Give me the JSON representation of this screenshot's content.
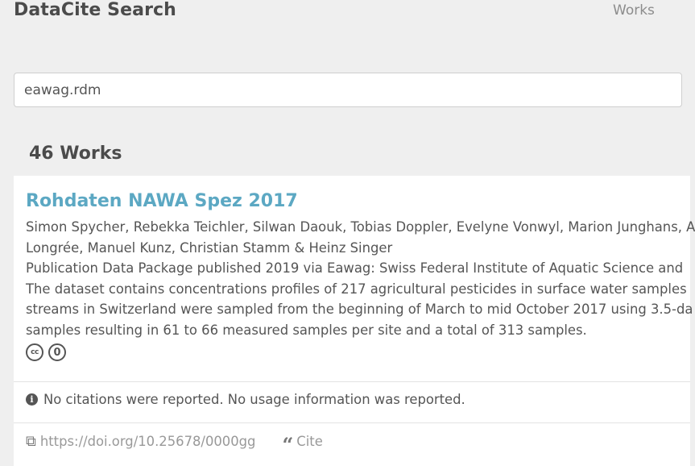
{
  "header": {
    "brand": "DataCite Search",
    "nav_works": "Works"
  },
  "search": {
    "value": "eawag.rdm"
  },
  "results": {
    "count_label": "46 Works"
  },
  "work": {
    "title": "Rohdaten NAWA Spez 2017",
    "authors_line1": "Simon Spycher, Rebekka Teichler, Silwan Daouk, Tobias Doppler, Evelyne Vonwyl, Marion Junghans, A",
    "authors_line2": "Longrée, Manuel Kunz, Christian Stamm & Heinz Singer",
    "publication": "Publication Data Package published 2019 via Eawag: Swiss Federal Institute of Aquatic Science and",
    "description_line1": "The dataset contains concentrations profiles of 217 agricultural pesticides in surface water samples",
    "description_line2": "streams in Switzerland were sampled from the beginning of March to mid October 2017 using 3.5-da",
    "description_line3": "samples resulting in 61 to 66 measured samples per site and a total of 313 samples.",
    "license_icons": [
      "cc-icon",
      "zero-icon"
    ],
    "notice": "No citations were reported. No usage information was reported.",
    "doi": "https://doi.org/10.25678/0000gg",
    "cite_label": "Cite"
  }
}
